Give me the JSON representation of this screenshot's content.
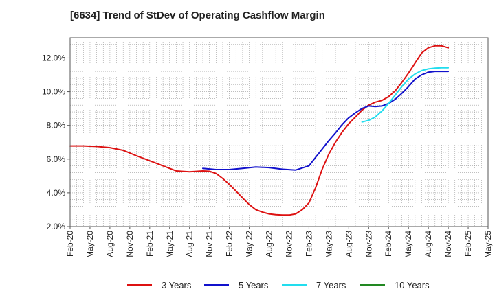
{
  "chart_data": {
    "type": "line",
    "title": "[6634]  Trend of StDev of Operating Cashflow Margin",
    "xlabel": "",
    "ylabel": "",
    "ylim": [
      2.0,
      13.2
    ],
    "yticks": [
      2.0,
      4.0,
      6.0,
      8.0,
      10.0,
      12.0
    ],
    "ytick_labels": [
      "2.0%",
      "4.0%",
      "6.0%",
      "8.0%",
      "10.0%",
      "12.0%"
    ],
    "x_range_months": [
      0,
      63
    ],
    "xticks": [
      "Feb-20",
      "May-20",
      "Aug-20",
      "Nov-20",
      "Feb-21",
      "May-21",
      "Aug-21",
      "Nov-21",
      "Feb-22",
      "May-22",
      "Aug-22",
      "Nov-22",
      "Feb-23",
      "May-23",
      "Aug-23",
      "Nov-23",
      "Feb-24",
      "May-24",
      "Aug-24",
      "Nov-24",
      "Feb-25",
      "May-25"
    ],
    "grid": true,
    "legend_position": "bottom",
    "series": [
      {
        "name": "3 Years",
        "color": "#dd1111",
        "x": [
          0,
          2,
          4,
          6,
          8,
          10,
          12,
          14,
          16,
          18,
          20,
          21,
          22,
          23,
          24,
          25,
          26,
          27,
          28,
          29,
          30,
          31,
          32,
          33,
          34,
          35,
          36,
          37,
          38,
          39,
          40,
          41,
          42,
          43,
          44,
          45,
          46,
          47,
          48,
          49,
          50,
          51,
          52,
          53,
          54,
          55,
          56,
          57
        ],
        "values": [
          6.78,
          6.78,
          6.75,
          6.68,
          6.52,
          6.2,
          5.9,
          5.6,
          5.3,
          5.25,
          5.3,
          5.28,
          5.15,
          4.85,
          4.5,
          4.1,
          3.7,
          3.3,
          3.0,
          2.85,
          2.75,
          2.7,
          2.68,
          2.68,
          2.75,
          3.0,
          3.4,
          4.3,
          5.4,
          6.3,
          7.0,
          7.6,
          8.1,
          8.5,
          8.9,
          9.2,
          9.38,
          9.48,
          9.7,
          10.05,
          10.55,
          11.1,
          11.7,
          12.3,
          12.6,
          12.72,
          12.72,
          12.6
        ]
      },
      {
        "name": "5 Years",
        "color": "#1111cc",
        "x": [
          20,
          22,
          24,
          26,
          28,
          30,
          32,
          34,
          36,
          37,
          38,
          39,
          40,
          41,
          42,
          43,
          44,
          45,
          46,
          47,
          48,
          49,
          50,
          51,
          52,
          53,
          54,
          55,
          56,
          57
        ],
        "values": [
          5.45,
          5.38,
          5.38,
          5.45,
          5.53,
          5.5,
          5.4,
          5.35,
          5.6,
          6.1,
          6.6,
          7.1,
          7.55,
          8.05,
          8.45,
          8.75,
          9.0,
          9.15,
          9.12,
          9.15,
          9.3,
          9.55,
          9.9,
          10.3,
          10.75,
          11.0,
          11.15,
          11.2,
          11.2,
          11.2
        ]
      },
      {
        "name": "7 Years",
        "color": "#22ddee",
        "x": [
          44,
          45,
          46,
          47,
          48,
          49,
          50,
          51,
          52,
          53,
          54,
          55,
          56,
          57
        ],
        "values": [
          8.2,
          8.3,
          8.5,
          8.85,
          9.3,
          9.8,
          10.3,
          10.75,
          11.05,
          11.25,
          11.35,
          11.4,
          11.42,
          11.42
        ]
      },
      {
        "name": "10 Years",
        "color": "#228822",
        "x": [],
        "values": []
      }
    ]
  }
}
